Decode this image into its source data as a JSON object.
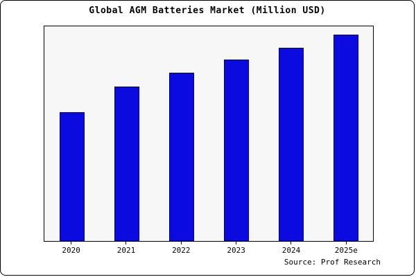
{
  "chart_data": {
    "type": "bar",
    "title": "Global AGM Batteries Market (Million USD)",
    "categories": [
      "2020",
      "2021",
      "2022",
      "2023",
      "2024",
      "2025e"
    ],
    "values": [
      600,
      720,
      785,
      845,
      900,
      960
    ],
    "xlabel": "",
    "ylabel": "",
    "ylim": [
      0,
      1000
    ],
    "grid": false,
    "legend": false,
    "plot_area_background": "#f7f7f7"
  },
  "source": "Source: Prof Research",
  "colors": {
    "bar_fill": "#0b0be0",
    "bar_border": "#00008b",
    "plot_bg": "#f7f7f7",
    "figure_bg": "#ffffff",
    "frame": "#000000"
  }
}
